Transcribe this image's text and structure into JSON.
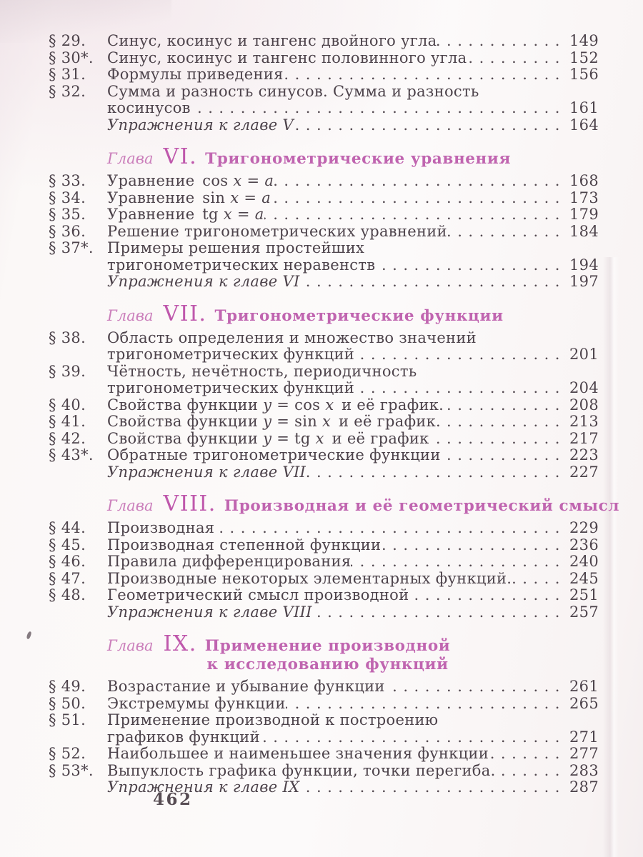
{
  "page": {
    "folio": "462"
  },
  "colors": {
    "body_text": "#4d434b",
    "chapter_label_pink": "#cb7fbb",
    "chapter_numeral_pink": "#bf58ac",
    "chapter_title_pink": "#c065b0",
    "paper": "#fbf8f7"
  },
  "toc": {
    "blocks": [
      {
        "type": "entries",
        "items": [
          {
            "number": "§ 29.",
            "lines": [
              {
                "text": "Синус, косинус и тангенс двойного угла",
                "page": "149"
              }
            ]
          },
          {
            "number": "§ 30*.",
            "lines": [
              {
                "text": "Синус, косинус и тангенс половинного угла",
                "page": "152"
              }
            ]
          },
          {
            "number": "§ 31.",
            "lines": [
              {
                "text": "Формулы приведения",
                "page": "156"
              }
            ]
          },
          {
            "number": "§ 32.",
            "lines": [
              {
                "text": "Сумма и разность синусов. Сумма и разность"
              },
              {
                "text": "косинусов",
                "page": "161"
              }
            ]
          },
          {
            "number": "",
            "italic": true,
            "lines": [
              {
                "text": "Упражнения к главе V",
                "page": "164"
              }
            ]
          }
        ]
      },
      {
        "type": "chapter",
        "label": "Глава",
        "numeral": "VI.",
        "title_lines": [
          "Тригонометрические уравнения"
        ]
      },
      {
        "type": "entries",
        "items": [
          {
            "number": "§ 33.",
            "lines": [
              {
                "text": "Уравнение cos *x* = *a*",
                "page": "168"
              }
            ]
          },
          {
            "number": "§ 34.",
            "lines": [
              {
                "text": "Уравнение sin *x* = *a*",
                "page": "173"
              }
            ]
          },
          {
            "number": "§ 35.",
            "lines": [
              {
                "text": "Уравнение tg *x* = *a*",
                "page": "179"
              }
            ]
          },
          {
            "number": "§ 36.",
            "lines": [
              {
                "text": "Решение тригонометрических уравнений",
                "page": "184"
              }
            ]
          },
          {
            "number": "§ 37*.",
            "lines": [
              {
                "text": "Примеры решения простейших"
              },
              {
                "text": "тригонометрических неравенств",
                "page": "194"
              }
            ]
          },
          {
            "number": "",
            "italic": true,
            "lines": [
              {
                "text": "Упражнения к главе VI",
                "page": "197"
              }
            ]
          }
        ]
      },
      {
        "type": "chapter",
        "label": "Глава",
        "numeral": "VII.",
        "title_lines": [
          "Тригонометрические функции"
        ]
      },
      {
        "type": "entries",
        "items": [
          {
            "number": "§ 38.",
            "lines": [
              {
                "text": "Область определения и множество значений"
              },
              {
                "text": "тригонометрических функций",
                "page": "201"
              }
            ]
          },
          {
            "number": "§ 39.",
            "lines": [
              {
                "text": "Чётность, нечётность, периодичность"
              },
              {
                "text": "тригонометрических функций",
                "page": "204"
              }
            ]
          },
          {
            "number": "§ 40.",
            "lines": [
              {
                "text": "Свойства функции *y* = cos *x* и её график.",
                "page": "208"
              }
            ]
          },
          {
            "number": "§ 41.",
            "lines": [
              {
                "text": "Свойства функции *y* = sin *x* и её график.",
                "page": "213"
              }
            ]
          },
          {
            "number": "§ 42.",
            "lines": [
              {
                "text": "Свойства функции *y* = tg *x* и её график",
                "page": "217"
              }
            ]
          },
          {
            "number": "§ 43*.",
            "lines": [
              {
                "text": "Обратные тригонометрические функции",
                "page": "223"
              }
            ]
          },
          {
            "number": "",
            "italic": true,
            "lines": [
              {
                "text": "Упражнения к главе VII",
                "page": "227"
              }
            ]
          }
        ]
      },
      {
        "type": "chapter",
        "label": "Глава",
        "numeral": "VIII.",
        "title_lines": [
          "Производная и её геометрический смысл"
        ]
      },
      {
        "type": "entries",
        "items": [
          {
            "number": "§ 44.",
            "lines": [
              {
                "text": "Производная",
                "page": "229"
              }
            ]
          },
          {
            "number": "§ 45.",
            "lines": [
              {
                "text": "Производная степенной функции",
                "page": "236"
              }
            ]
          },
          {
            "number": "§ 46.",
            "lines": [
              {
                "text": "Правила дифференцирования",
                "page": "240"
              }
            ]
          },
          {
            "number": "§ 47.",
            "lines": [
              {
                "text": "Производные некоторых элементарных функций.",
                "page": "245"
              }
            ]
          },
          {
            "number": "§ 48.",
            "lines": [
              {
                "text": "Геометрический смысл производной",
                "page": "251"
              }
            ]
          },
          {
            "number": "",
            "italic": true,
            "lines": [
              {
                "text": "Упражнения к главе VIII",
                "page": "257"
              }
            ]
          }
        ]
      },
      {
        "type": "chapter",
        "label": "Глава",
        "numeral": "IX.",
        "title_lines": [
          "Применение производной",
          "к исследованию функций"
        ]
      },
      {
        "type": "entries",
        "items": [
          {
            "number": "§ 49.",
            "lines": [
              {
                "text": "Возрастание и убывание функции",
                "page": "261"
              }
            ]
          },
          {
            "number": "§ 50.",
            "lines": [
              {
                "text": "Экстремумы функции",
                "page": "265"
              }
            ]
          },
          {
            "number": "§ 51.",
            "lines": [
              {
                "text": "Применение производной к построению"
              },
              {
                "text": "графиков функций",
                "page": "271"
              }
            ]
          },
          {
            "number": "§ 52.",
            "lines": [
              {
                "text": "Наибольшее и наименьшее значения функции",
                "page": "277"
              }
            ]
          },
          {
            "number": "§ 53*.",
            "lines": [
              {
                "text": "Выпуклость графика функции, точки перегиба.",
                "page": "283"
              }
            ]
          },
          {
            "number": "",
            "italic": true,
            "lines": [
              {
                "text": "Упражнения к главе IX",
                "page": "287"
              }
            ]
          }
        ]
      }
    ]
  }
}
